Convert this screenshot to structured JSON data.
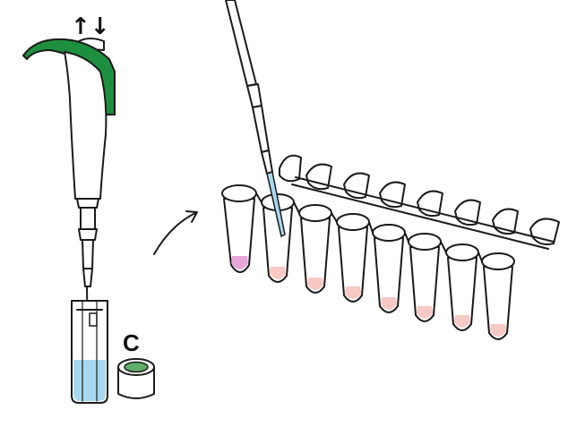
{
  "step_label": "C",
  "plunger_arrows": "↑↓",
  "colors": {
    "pipette_green": "#1e8f3e",
    "tube_liquid_blue": "#a8d8f0",
    "sample_pink": "#f7c9c4",
    "sample_magenta": "#e7a6d6",
    "cap_green": "#5fae6a"
  },
  "strip": {
    "tube_count": 8
  },
  "icons": [
    "pipette-icon",
    "sample-tube-icon",
    "cap-icon",
    "arrow-icon",
    "pcr-strip-icon"
  ]
}
